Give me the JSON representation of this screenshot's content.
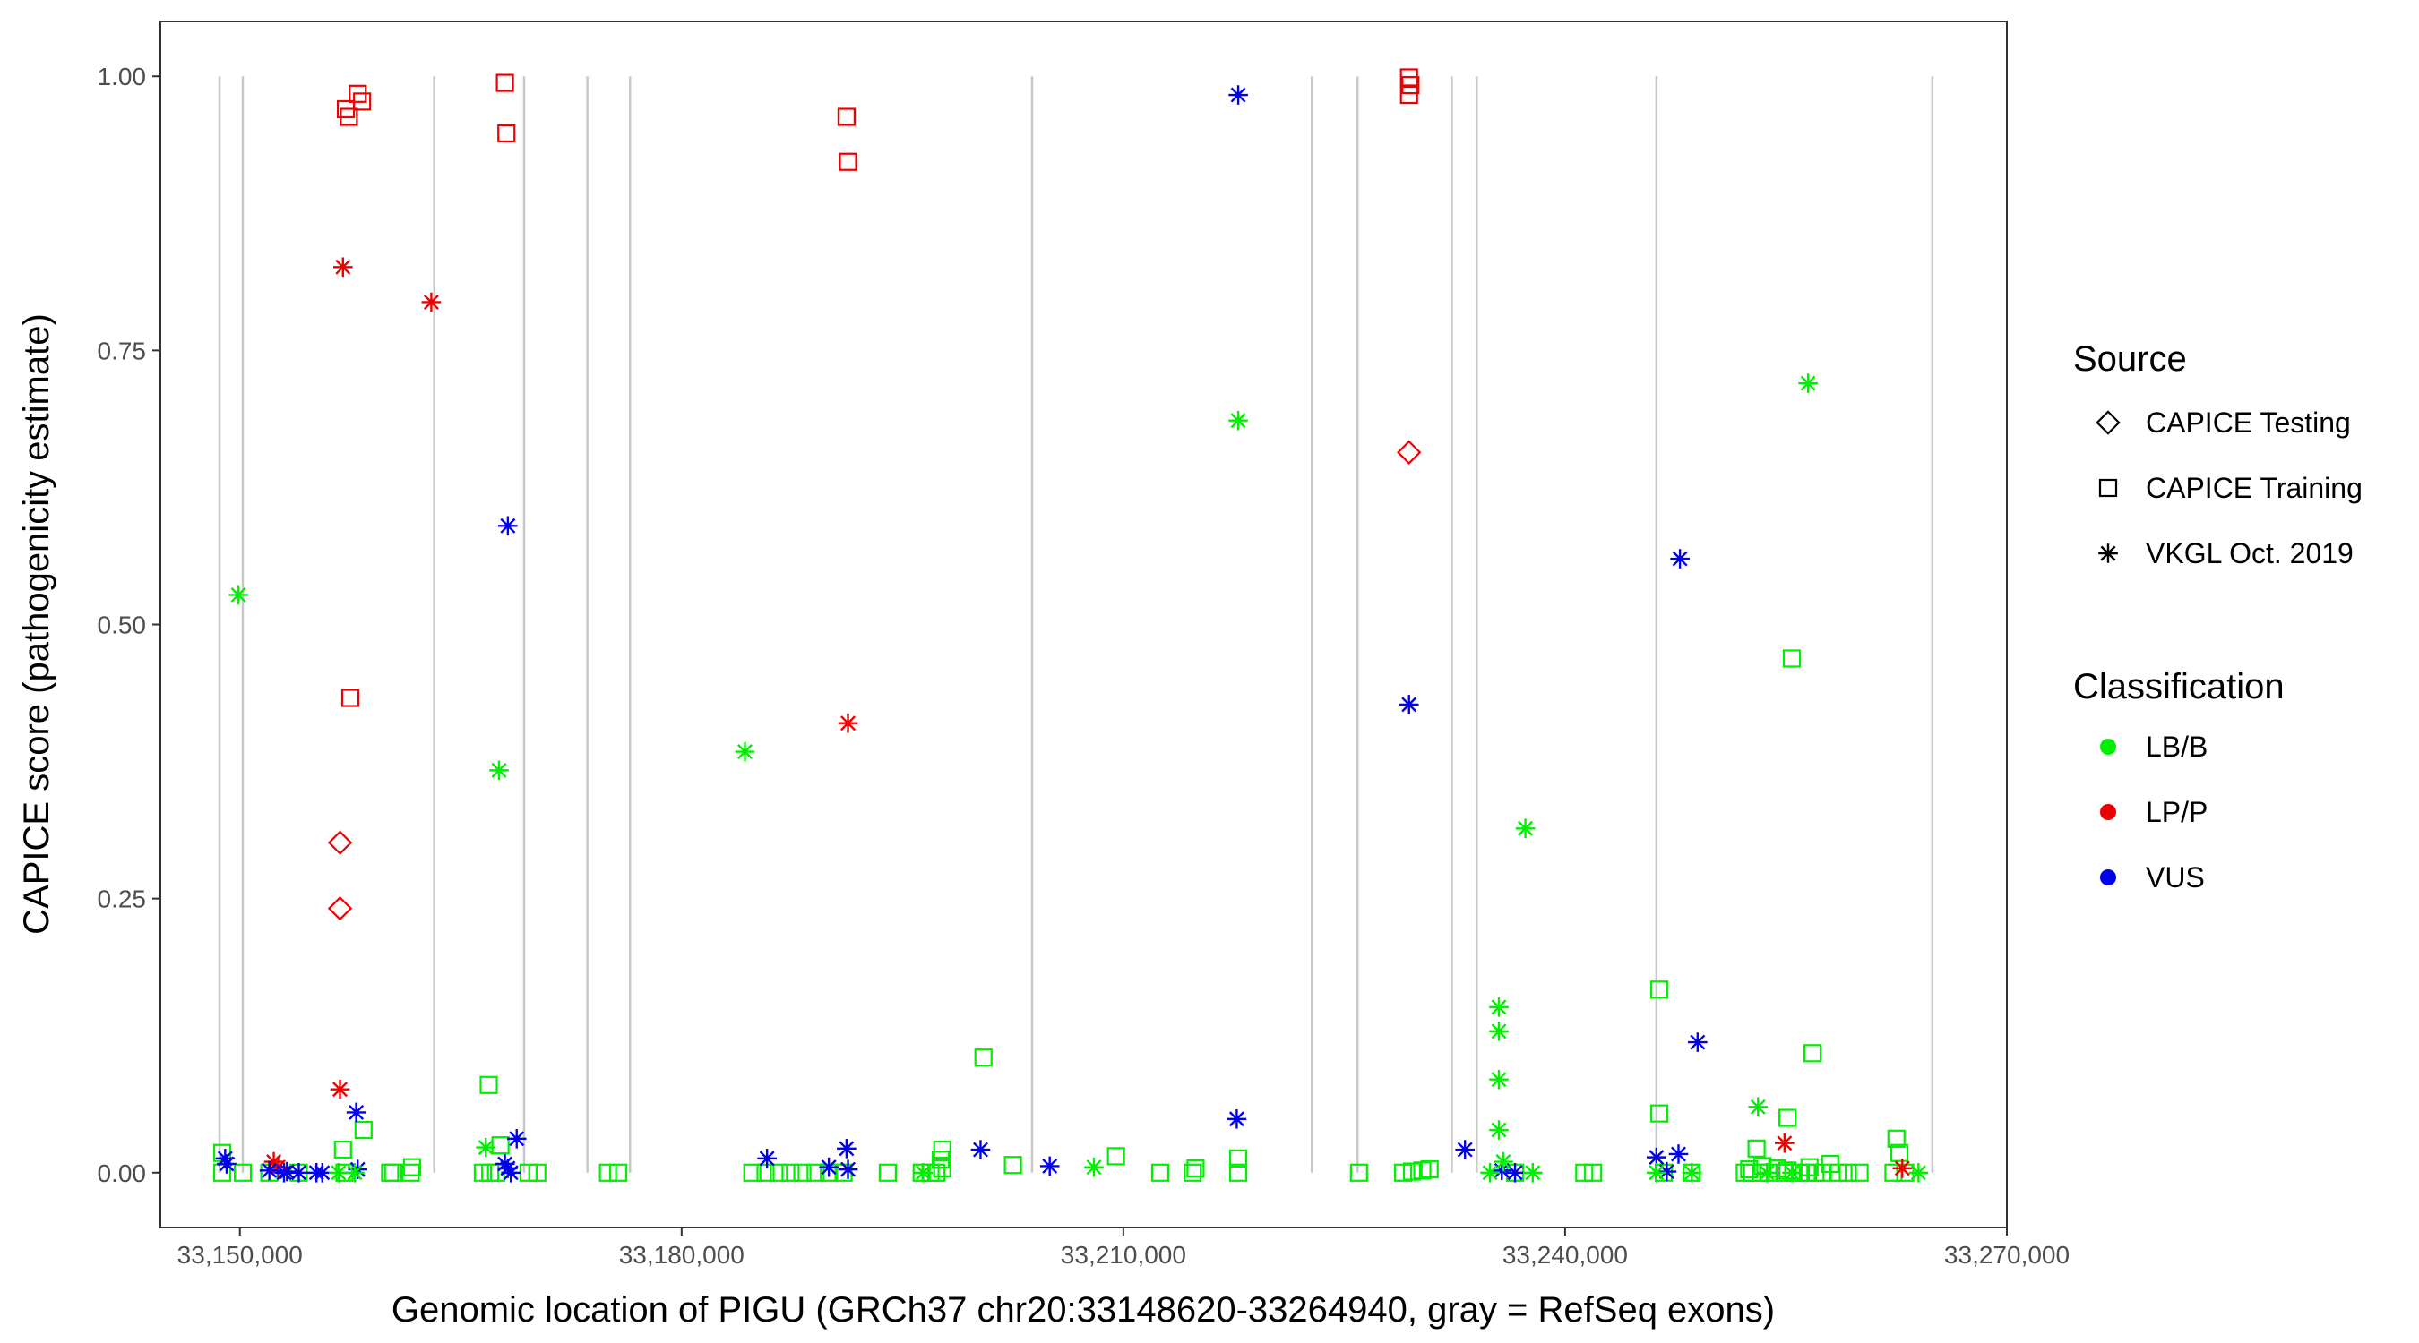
{
  "chart_data": {
    "type": "scatter",
    "title": "",
    "xlabel": "Genomic location of PIGU (GRCh37 chr20:33148620-33264940, gray = RefSeq exons)",
    "ylabel": "CAPICE score (pathogenicity estimate)",
    "xlim": [
      33144600,
      33270000
    ],
    "ylim": [
      -0.05,
      1.05
    ],
    "x_ticks": [
      33150000,
      33180000,
      33210000,
      33240000,
      33270000
    ],
    "x_tick_labels": [
      "33,150,000",
      "33,180,000",
      "33,210,000",
      "33,240,000",
      "33,270,000"
    ],
    "y_ticks": [
      0,
      0.25,
      0.5,
      0.75,
      1.0
    ],
    "y_tick_labels": [
      "0.00",
      "0.25",
      "0.50",
      "0.75",
      "1.00"
    ],
    "grid": false,
    "exon_lines": [
      33148620,
      33150200,
      33163200,
      33169300,
      33173600,
      33176500,
      33203800,
      33222800,
      33225900,
      33232300,
      33234000,
      33246200,
      33264940
    ],
    "exon_color": "#c8c8c8",
    "legend": {
      "placement": "right",
      "source_title": "Source",
      "source_items": [
        {
          "label": "CAPICE Testing",
          "shape": "diamond"
        },
        {
          "label": "CAPICE Training",
          "shape": "square"
        },
        {
          "label": "VKGL Oct. 2019",
          "shape": "asterisk"
        }
      ],
      "class_title": "Classification",
      "class_items": [
        {
          "label": "LB/B",
          "color": "#00ee00"
        },
        {
          "label": "LP/P",
          "color": "#ee0000"
        },
        {
          "label": "VUS",
          "color": "#0000ee"
        }
      ]
    },
    "series": [
      {
        "source": "CAPICE Training",
        "classification": "LP/P",
        "points": [
          [
            33157200,
            0.97
          ],
          [
            33157400,
            0.963
          ],
          [
            33158000,
            0.984
          ],
          [
            33158300,
            0.977
          ],
          [
            33157500,
            0.433
          ],
          [
            33168000,
            0.994
          ],
          [
            33168100,
            0.948
          ],
          [
            33191200,
            0.963
          ],
          [
            33191300,
            0.922
          ],
          [
            33229400,
            0.999
          ],
          [
            33229500,
            0.992
          ],
          [
            33229400,
            0.983
          ]
        ]
      },
      {
        "source": "CAPICE Testing",
        "classification": "LP/P",
        "points": [
          [
            33156800,
            0.301
          ],
          [
            33156800,
            0.241
          ],
          [
            33229400,
            0.657
          ]
        ]
      },
      {
        "source": "VKGL Oct. 2019",
        "classification": "LP/P",
        "points": [
          [
            33157000,
            0.826
          ],
          [
            33163000,
            0.794
          ],
          [
            33156800,
            0.076
          ],
          [
            33191300,
            0.41
          ],
          [
            33152300,
            0.01
          ],
          [
            33152600,
            0.005
          ],
          [
            33254900,
            0.027
          ],
          [
            33262900,
            0.004
          ]
        ]
      },
      {
        "source": "VKGL Oct. 2019",
        "classification": "VUS",
        "points": [
          [
            33217800,
            0.983
          ],
          [
            33168200,
            0.59
          ],
          [
            33229400,
            0.427
          ],
          [
            33247800,
            0.56
          ],
          [
            33217700,
            0.049
          ],
          [
            33157900,
            0.055
          ],
          [
            33168800,
            0.031
          ],
          [
            33249000,
            0.119
          ],
          [
            33233200,
            0.021
          ],
          [
            33200300,
            0.021
          ],
          [
            33191200,
            0.022
          ],
          [
            33247700,
            0.017
          ],
          [
            33246200,
            0.014
          ],
          [
            33185800,
            0.013
          ],
          [
            33149000,
            0.013
          ],
          [
            33149100,
            0.008
          ],
          [
            33205000,
            0.006
          ],
          [
            33190000,
            0.005
          ],
          [
            33191300,
            0.003
          ],
          [
            33158000,
            0.003
          ],
          [
            33152000,
            0.002
          ],
          [
            33153000,
            0.0
          ],
          [
            33154000,
            0.0
          ],
          [
            33155200,
            0.0
          ],
          [
            33155600,
            0.0
          ],
          [
            33168000,
            0.008
          ],
          [
            33168200,
            0.004
          ],
          [
            33168400,
            0.0
          ],
          [
            33235700,
            0.002
          ],
          [
            33236600,
            0.0
          ],
          [
            33246900,
            0.001
          ],
          [
            33153200,
            0.001
          ]
        ]
      },
      {
        "source": "VKGL Oct. 2019",
        "classification": "LB/B",
        "points": [
          [
            33256500,
            0.72
          ],
          [
            33217800,
            0.686
          ],
          [
            33149900,
            0.527
          ],
          [
            33184300,
            0.384
          ],
          [
            33167600,
            0.367
          ],
          [
            33237300,
            0.314
          ],
          [
            33235500,
            0.151
          ],
          [
            33235500,
            0.129
          ],
          [
            33235500,
            0.085
          ],
          [
            33253100,
            0.06
          ],
          [
            33235500,
            0.039
          ],
          [
            33166700,
            0.023
          ],
          [
            33235800,
            0.01
          ],
          [
            33208000,
            0.005
          ],
          [
            33196400,
            0.0
          ],
          [
            33234900,
            0.0
          ],
          [
            33237800,
            0.0
          ],
          [
            33246200,
            0.0
          ],
          [
            33248600,
            0.0
          ],
          [
            33253700,
            0.0
          ],
          [
            33255400,
            0.0
          ],
          [
            33264000,
            0.0
          ],
          [
            33156700,
            0.0
          ],
          [
            33157800,
            0.0
          ]
        ]
      },
      {
        "source": "CAPICE Training",
        "classification": "LB/B",
        "points": [
          [
            33255400,
            0.469
          ],
          [
            33256800,
            0.109
          ],
          [
            33200500,
            0.105
          ],
          [
            33166900,
            0.08
          ],
          [
            33246400,
            0.167
          ],
          [
            33246400,
            0.054
          ],
          [
            33255100,
            0.05
          ],
          [
            33158400,
            0.039
          ],
          [
            33262500,
            0.031
          ],
          [
            33253000,
            0.022
          ],
          [
            33157000,
            0.021
          ],
          [
            33197700,
            0.021
          ],
          [
            33262700,
            0.018
          ],
          [
            33209500,
            0.015
          ],
          [
            33217800,
            0.013
          ],
          [
            33197600,
            0.012
          ],
          [
            33148800,
            0.018
          ],
          [
            33202500,
            0.007
          ],
          [
            33258000,
            0.008
          ],
          [
            33167700,
            0.025
          ],
          [
            33148800,
            0.0
          ],
          [
            33150200,
            0.0
          ],
          [
            33152000,
            0.0
          ],
          [
            33154000,
            0.0
          ],
          [
            33157100,
            0.0
          ],
          [
            33160200,
            0.0
          ],
          [
            33160400,
            0.0
          ],
          [
            33161600,
            0.0
          ],
          [
            33161700,
            0.005
          ],
          [
            33166500,
            0.0
          ],
          [
            33167000,
            0.0
          ],
          [
            33167400,
            0.0
          ],
          [
            33169600,
            0.0
          ],
          [
            33170200,
            0.0
          ],
          [
            33175000,
            0.0
          ],
          [
            33175700,
            0.0
          ],
          [
            33184800,
            0.0
          ],
          [
            33185700,
            0.0
          ],
          [
            33186600,
            0.0
          ],
          [
            33187400,
            0.0
          ],
          [
            33188200,
            0.0
          ],
          [
            33189100,
            0.0
          ],
          [
            33190000,
            0.0
          ],
          [
            33191000,
            0.0
          ],
          [
            33194000,
            0.0
          ],
          [
            33196300,
            0.0
          ],
          [
            33196900,
            0.0
          ],
          [
            33197300,
            0.0
          ],
          [
            33197700,
            0.004
          ],
          [
            33212500,
            0.0
          ],
          [
            33214700,
            0.0
          ],
          [
            33214900,
            0.004
          ],
          [
            33217800,
            0.0
          ],
          [
            33226000,
            0.0
          ],
          [
            33229000,
            0.0
          ],
          [
            33229600,
            0.001
          ],
          [
            33230300,
            0.002
          ],
          [
            33230800,
            0.003
          ],
          [
            33236600,
            0.0
          ],
          [
            33241300,
            0.0
          ],
          [
            33241900,
            0.0
          ],
          [
            33246700,
            0.0
          ],
          [
            33248600,
            0.0
          ],
          [
            33252200,
            0.0
          ],
          [
            33252700,
            0.0
          ],
          [
            33253300,
            0.0
          ],
          [
            33253800,
            0.0
          ],
          [
            33254400,
            0.004
          ],
          [
            33254900,
            0.0
          ],
          [
            33255500,
            0.0
          ],
          [
            33256000,
            0.0
          ],
          [
            33256500,
            0.0
          ],
          [
            33257000,
            0.0
          ],
          [
            33257500,
            0.0
          ],
          [
            33258500,
            0.0
          ],
          [
            33259200,
            0.0
          ],
          [
            33260000,
            0.0
          ],
          [
            33262300,
            0.0
          ],
          [
            33263100,
            0.0
          ],
          [
            33252500,
            0.003
          ],
          [
            33253400,
            0.006
          ],
          [
            33255100,
            0.002
          ],
          [
            33256600,
            0.005
          ]
        ]
      }
    ]
  }
}
